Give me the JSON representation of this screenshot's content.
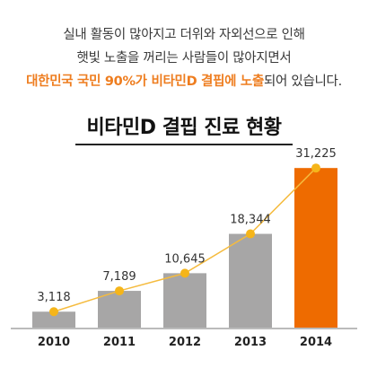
{
  "intro": {
    "line1": "실내 활동이 많아지고 더위와 자외선으로 인해",
    "line2": "햇빛 노출을 꺼리는 사람들이 많아지면서",
    "line3_highlight": "대한민국 국민 90%가 비타민D 결핍에 노출",
    "line3_rest": "되어 있습니다."
  },
  "colors": {
    "accent": "#ee7d1f",
    "bar_gray": "#a7a6a6",
    "bar_highlight": "#ee6b00",
    "trend_line": "#f5bb3e",
    "point": "#f5b51a"
  },
  "chart_data": {
    "type": "bar",
    "title": "비타민D 결핍 진료 현황",
    "categories": [
      "2010",
      "2011",
      "2012",
      "2013",
      "2014"
    ],
    "values": [
      3118,
      7189,
      10645,
      18344,
      31225
    ],
    "value_labels": [
      "3,118",
      "7,189",
      "10,645",
      "18,344",
      "31,225"
    ],
    "highlight_index": 4,
    "trend_line": true,
    "xlabel": "",
    "ylabel": "",
    "ylim": [
      0,
      36000
    ],
    "grid": false,
    "legend": "none"
  }
}
